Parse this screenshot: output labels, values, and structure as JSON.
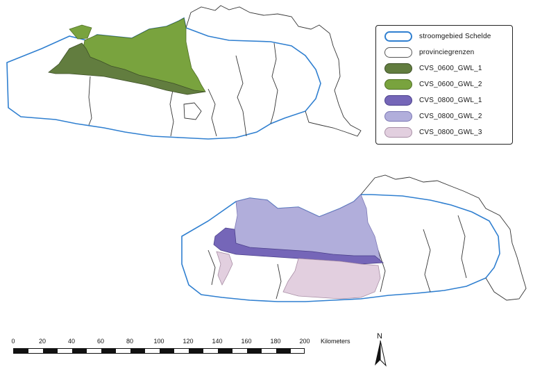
{
  "colors": {
    "basin_outline": "#2f7fd0",
    "province_outline": "#333333",
    "cvs_0600_gwl_1": "#627d3f",
    "cvs_0600_gwl_2": "#79a33e",
    "cvs_0800_gwl_1": "#7566b8",
    "cvs_0800_gwl_2": "#b1aedb",
    "cvs_0800_gwl_3": "#e2cfdf"
  },
  "legend": {
    "items": [
      {
        "label": "stroomgebied Schelde",
        "fill": "#ffffff",
        "stroke": "#2f7fd0"
      },
      {
        "label": "provinciegrenzen",
        "fill": "#ffffff",
        "stroke": "#555555"
      },
      {
        "label": "CVS_0600_GWL_1",
        "fill": "#627d3f",
        "stroke": "#3d4f27"
      },
      {
        "label": "CVS_0600_GWL_2",
        "fill": "#79a33e",
        "stroke": "#4f6e25"
      },
      {
        "label": "CVS_0800_GWL_1",
        "fill": "#7566b8",
        "stroke": "#4a3f8a"
      },
      {
        "label": "CVS_0800_GWL_2",
        "fill": "#b1aedb",
        "stroke": "#7c78b5"
      },
      {
        "label": "CVS_0800_GWL_3",
        "fill": "#e2cfdf",
        "stroke": "#a88ea5"
      }
    ]
  },
  "scale": {
    "ticks": [
      "0",
      "20",
      "40",
      "60",
      "80",
      "100",
      "120",
      "140",
      "160",
      "180",
      "200"
    ],
    "unit": "Kilometers"
  },
  "north_arrow": {
    "letter": "N"
  },
  "icons": [
    "north-arrow-icon"
  ]
}
